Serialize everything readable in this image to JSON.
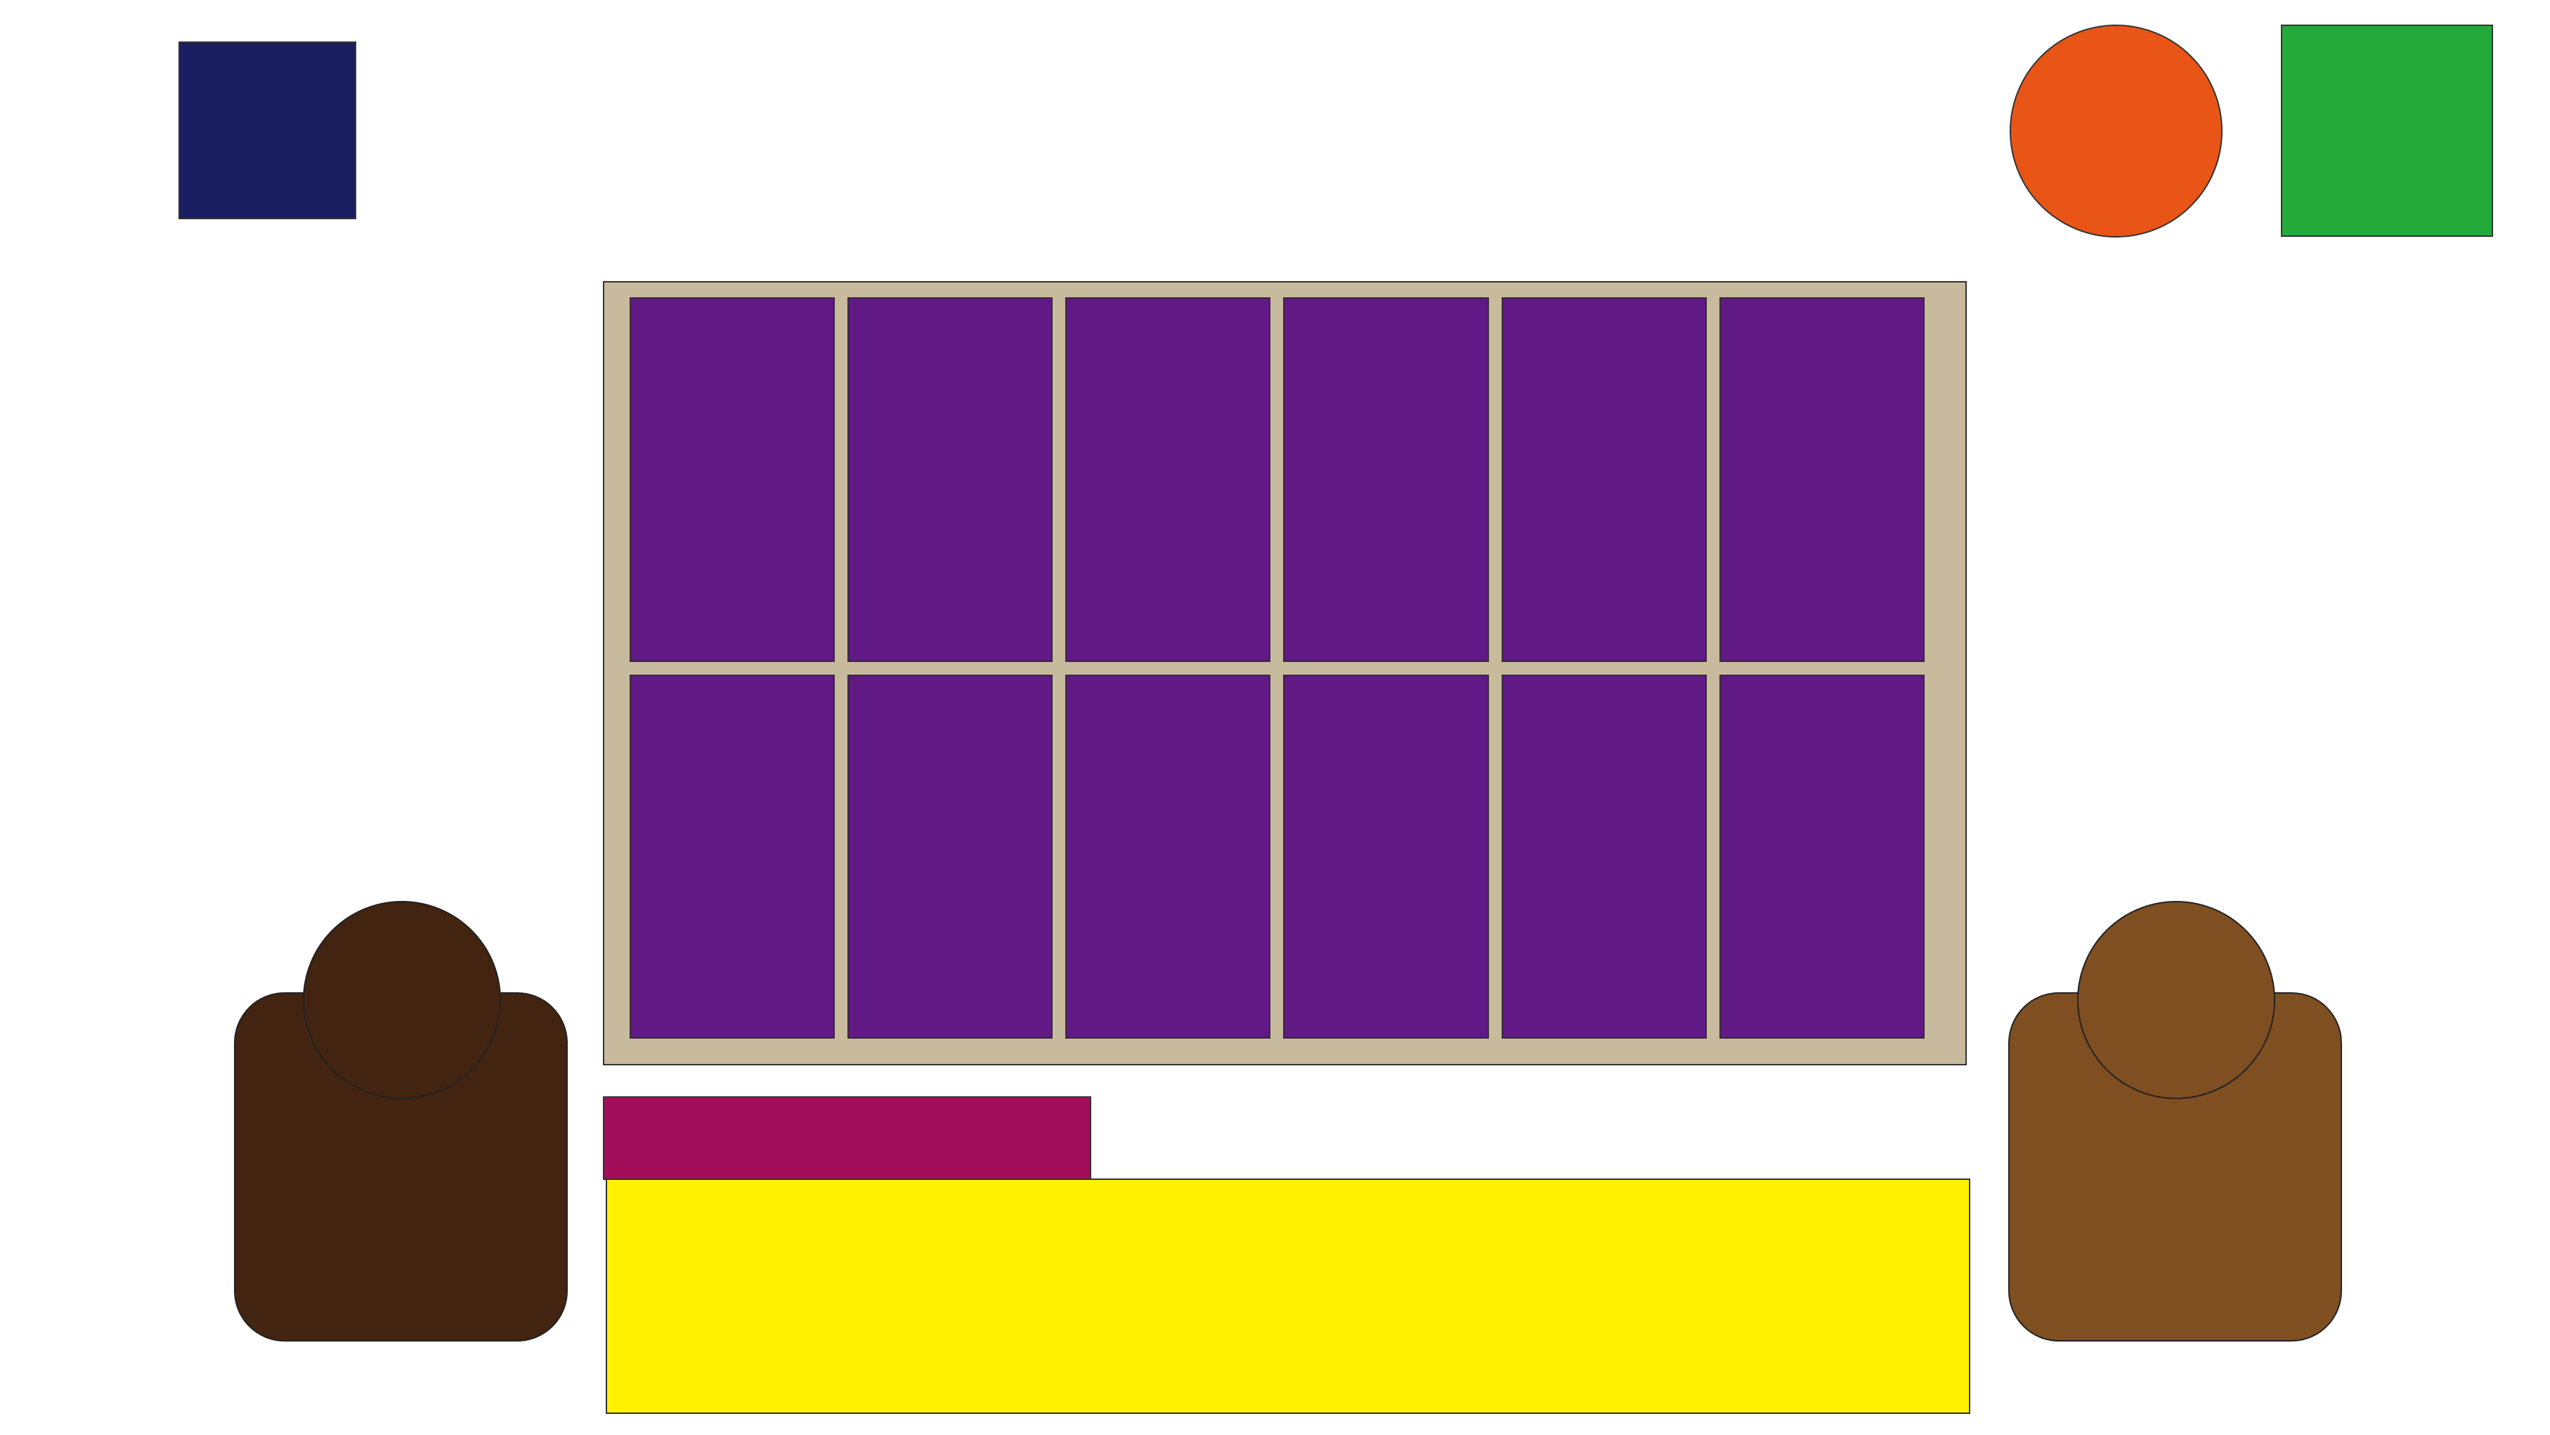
{
  "indicators": {
    "top_left_square": {
      "color": "#1a1d60"
    },
    "top_right_circle": {
      "color": "#e95516"
    },
    "top_right_square": {
      "color": "#23aa3a"
    }
  },
  "board": {
    "frame_color": "#c8ba9c",
    "cell_color": "#611986",
    "rows": 2,
    "columns": 6
  },
  "tab_bar": {
    "color": "#a30e5a"
  },
  "panel": {
    "color": "#fff100"
  },
  "players": [
    {
      "name_id": "left",
      "color": "#422410"
    },
    {
      "name_id": "right",
      "color": "#7f4f22"
    }
  ]
}
